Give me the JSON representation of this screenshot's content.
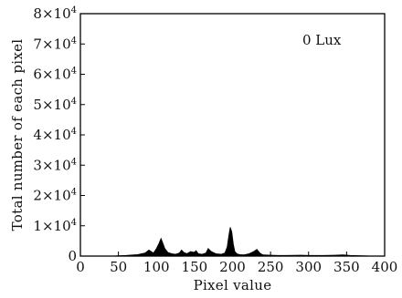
{
  "chart_data": {
    "type": "area",
    "title": "",
    "xlabel": "Pixel value",
    "ylabel": "Total number of each pixel",
    "xlim": [
      0,
      400
    ],
    "ylim": [
      0,
      80000
    ],
    "grid": false,
    "annotation": "0 Lux",
    "xticks": [
      {
        "value": 0,
        "label": "0"
      },
      {
        "value": 50,
        "label": "50"
      },
      {
        "value": 100,
        "label": "100"
      },
      {
        "value": 150,
        "label": "150"
      },
      {
        "value": 200,
        "label": "200"
      },
      {
        "value": 250,
        "label": "250"
      },
      {
        "value": 300,
        "label": "300"
      },
      {
        "value": 350,
        "label": "350"
      },
      {
        "value": 400,
        "label": "400"
      }
    ],
    "yticks": [
      {
        "value": 0,
        "mantissa": "0",
        "exp": ""
      },
      {
        "value": 10000,
        "mantissa": "1×10",
        "exp": "4"
      },
      {
        "value": 20000,
        "mantissa": "2×10",
        "exp": "4"
      },
      {
        "value": 30000,
        "mantissa": "3×10",
        "exp": "4"
      },
      {
        "value": 40000,
        "mantissa": "4×10",
        "exp": "4"
      },
      {
        "value": 50000,
        "mantissa": "5×10",
        "exp": "4"
      },
      {
        "value": 60000,
        "mantissa": "6×10",
        "exp": "4"
      },
      {
        "value": 70000,
        "mantissa": "7×10",
        "exp": "4"
      },
      {
        "value": 80000,
        "mantissa": "8×10",
        "exp": "4"
      }
    ],
    "series": [
      {
        "color": "#000000",
        "x": [
          0,
          40,
          60,
          75,
          85,
          90,
          93,
          96,
          100,
          103,
          106,
          108,
          111,
          115,
          120,
          125,
          130,
          133,
          136,
          140,
          145,
          150,
          152,
          155,
          160,
          165,
          168,
          172,
          178,
          185,
          190,
          193,
          195,
          197,
          199,
          201,
          203,
          206,
          210,
          215,
          222,
          228,
          232,
          236,
          240,
          250,
          260,
          270,
          290,
          300,
          320,
          335,
          345,
          355,
          370,
          385,
          400
        ],
        "y": [
          0,
          0,
          200,
          500,
          1000,
          2000,
          1500,
          1000,
          2500,
          4000,
          5800,
          4500,
          2500,
          1200,
          800,
          600,
          1000,
          2000,
          1200,
          800,
          1500,
          1200,
          1800,
          800,
          600,
          1000,
          2500,
          1500,
          800,
          600,
          1000,
          3000,
          6500,
          9500,
          8000,
          4000,
          1500,
          700,
          500,
          400,
          800,
          1500,
          2200,
          1000,
          400,
          300,
          200,
          200,
          300,
          200,
          200,
          300,
          400,
          200,
          100,
          0,
          0
        ]
      }
    ]
  }
}
